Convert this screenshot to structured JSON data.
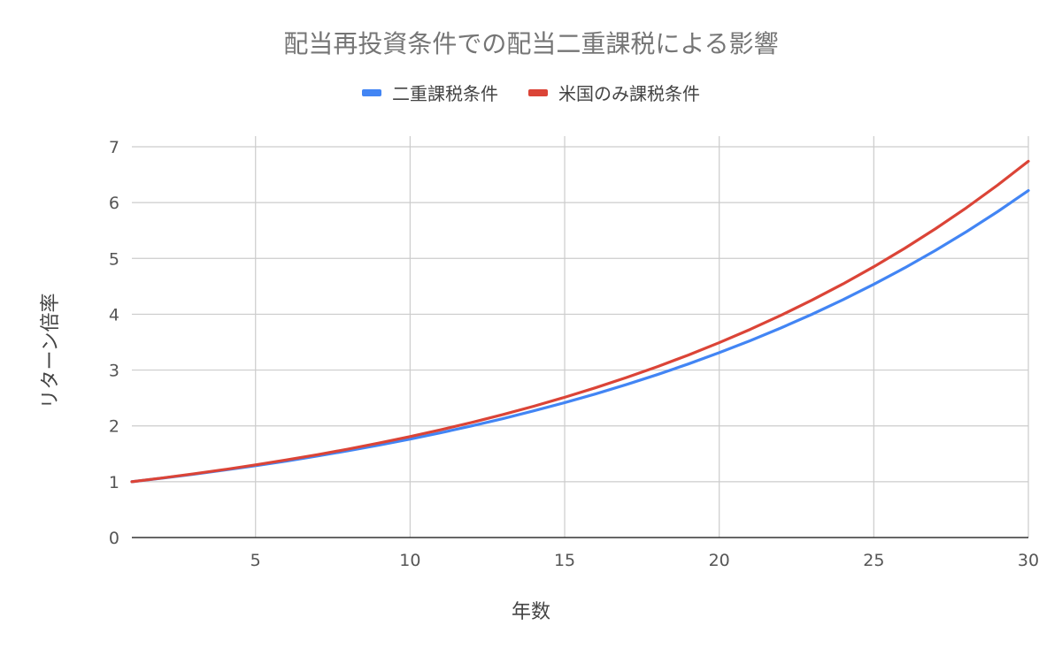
{
  "chart_data": {
    "type": "line",
    "title": "配当再投資条件での配当二重課税による影響",
    "xlabel": "年数",
    "ylabel": "リターン倍率",
    "xlim": [
      1,
      30
    ],
    "ylim": [
      0,
      7
    ],
    "xticks": [
      5,
      10,
      15,
      20,
      25,
      30
    ],
    "yticks": [
      0,
      1,
      2,
      3,
      4,
      5,
      6,
      7
    ],
    "grid": true,
    "legend_position": "top",
    "x": [
      1,
      2,
      3,
      4,
      5,
      6,
      7,
      8,
      9,
      10,
      11,
      12,
      13,
      14,
      15,
      16,
      17,
      18,
      19,
      20,
      21,
      22,
      23,
      24,
      25,
      26,
      27,
      28,
      29,
      30
    ],
    "series": [
      {
        "name": "二重課税条件",
        "color": "#4285F4",
        "values": [
          1.0,
          1.065,
          1.134,
          1.208,
          1.287,
          1.37,
          1.46,
          1.555,
          1.656,
          1.763,
          1.878,
          2.0,
          2.13,
          2.269,
          2.416,
          2.573,
          2.741,
          2.919,
          3.109,
          3.311,
          3.526,
          3.755,
          3.999,
          4.259,
          4.536,
          4.831,
          5.145,
          5.48,
          5.836,
          6.215
        ]
      },
      {
        "name": "米国のみ課税条件",
        "color": "#DB4437",
        "values": [
          1.0,
          1.068,
          1.141,
          1.218,
          1.301,
          1.39,
          1.484,
          1.585,
          1.693,
          1.808,
          1.931,
          2.062,
          2.203,
          2.352,
          2.512,
          2.683,
          2.866,
          3.061,
          3.269,
          3.491,
          3.728,
          3.982,
          4.253,
          4.542,
          4.851,
          5.181,
          5.533,
          5.909,
          6.311,
          6.74
        ]
      }
    ]
  }
}
